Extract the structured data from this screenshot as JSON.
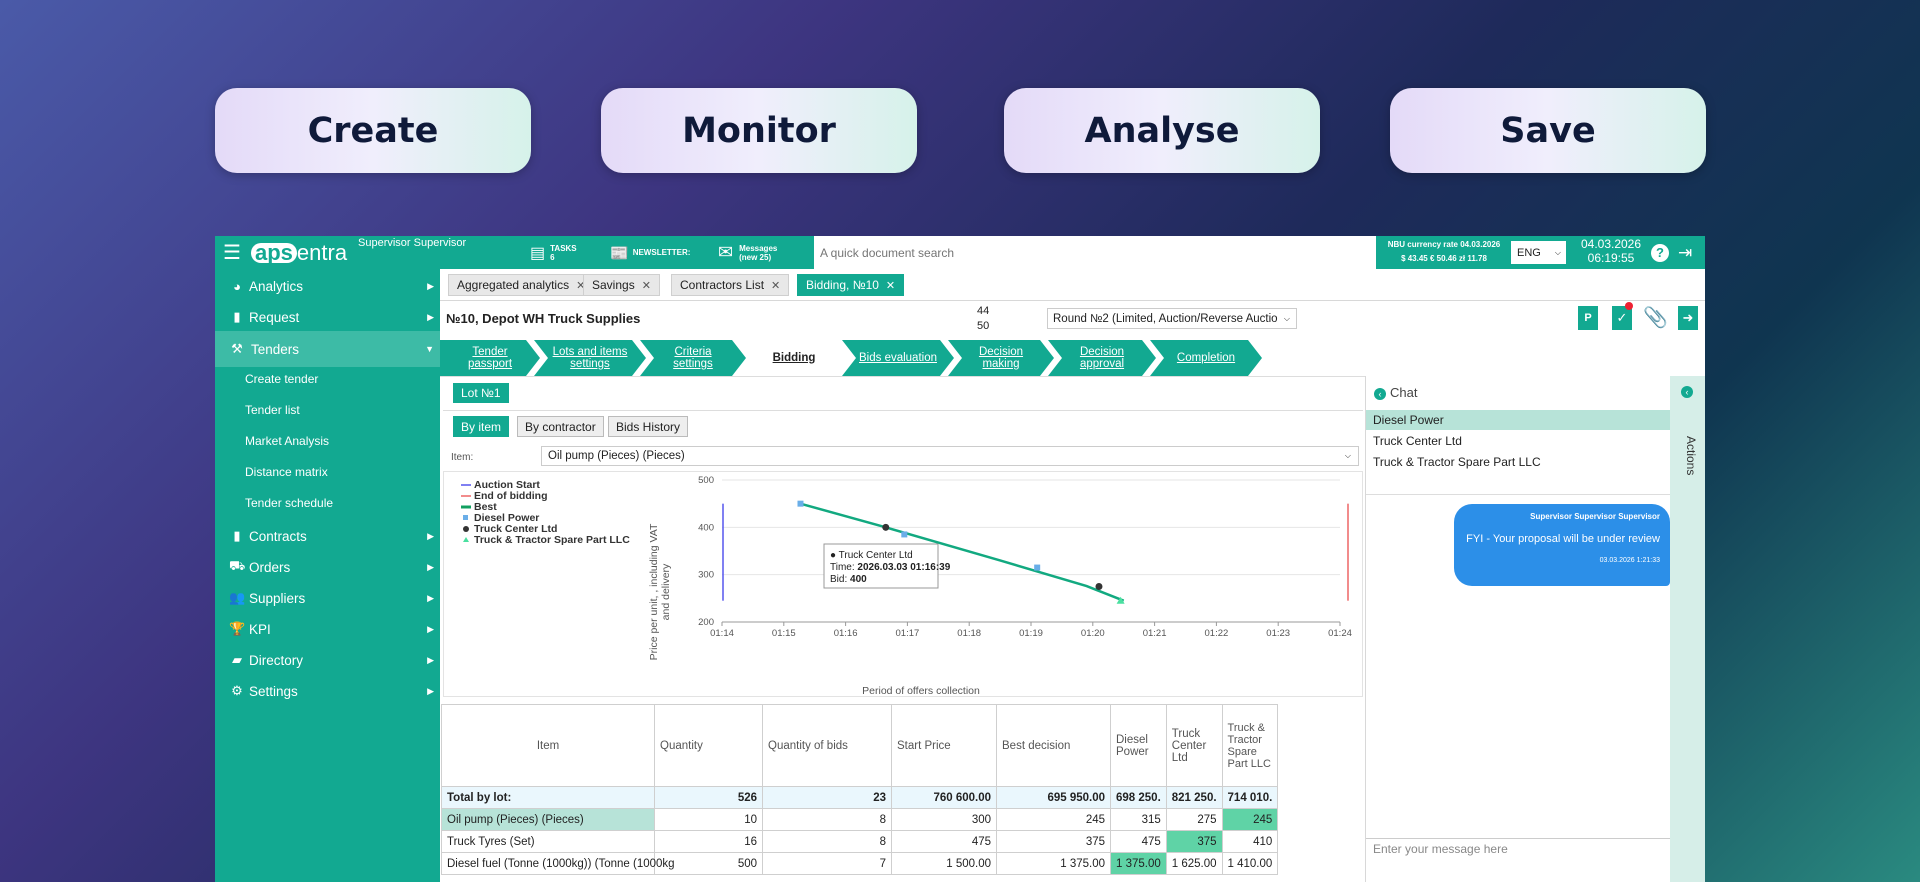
{
  "pills": [
    "Create",
    "Monitor",
    "Analyse",
    "Save"
  ],
  "topbar": {
    "brand_a": "aps",
    "brand_b": "entra",
    "user": "Supervisor Supervisor",
    "tasks_label": "TASKS",
    "tasks_count": "6",
    "newsletter": "NEWSLETTER:",
    "messages_label": "Messages",
    "messages_count": "(new 25)",
    "search_placeholder": "A quick document search",
    "rate_title": "NBU currency rate 04.03.2026",
    "rate_values": "$ 43.45  € 50.46  zł 11.78",
    "lang": "ENG",
    "date": "04.03.2026",
    "time": "06:19:55"
  },
  "sidebar": {
    "items": [
      {
        "label": "Analytics",
        "icon": "pie-chart-icon"
      },
      {
        "label": "Request",
        "icon": "document-icon"
      },
      {
        "label": "Tenders",
        "icon": "gavel-icon"
      },
      {
        "label": "Contracts",
        "icon": "contract-icon"
      },
      {
        "label": "Orders",
        "icon": "truck-icon"
      },
      {
        "label": "Suppliers",
        "icon": "users-icon"
      },
      {
        "label": "KPI",
        "icon": "trophy-icon"
      },
      {
        "label": "Directory",
        "icon": "book-icon"
      },
      {
        "label": "Settings",
        "icon": "gears-icon"
      }
    ],
    "sub": [
      "Create tender",
      "Tender list",
      "Market Analysis",
      "Distance matrix",
      "Tender schedule"
    ]
  },
  "tabs": [
    {
      "label": "Aggregated analytics"
    },
    {
      "label": "Savings"
    },
    {
      "label": "Contractors List"
    },
    {
      "label": "Bidding, №10"
    }
  ],
  "header": {
    "title": "№10, Depot WH Truck Supplies",
    "count_a": "44",
    "count_b": "50",
    "round": "Round №2 (Limited, Auction/Reverse Auctio"
  },
  "steps": [
    "Tender passport",
    "Lots and items settings",
    "Criteria settings",
    "Bidding",
    "Bids evaluation",
    "Decision making",
    "Decision approval",
    "Completion"
  ],
  "lot": "Lot №1",
  "views": [
    "By item",
    "By contractor",
    "Bids History"
  ],
  "item_label": "Item:",
  "item_value": "Oil pump (Pieces) (Pieces)",
  "chart_data": {
    "type": "line",
    "ylabel": "Price per unit, , including VAT and delivery",
    "xlabel": "Period of offers collection",
    "x_ticks": [
      "01:14",
      "01:15",
      "01:16",
      "01:17",
      "01:18",
      "01:19",
      "01:20",
      "01:21",
      "01:22",
      "01:23",
      "01:24"
    ],
    "y_ticks": [
      "200",
      "300",
      "400",
      "500"
    ],
    "ylim": [
      200,
      500
    ],
    "legend": [
      "Auction Start",
      "End of bidding",
      "Best",
      "Diesel Power",
      "Truck Center Ltd",
      "Truck & Tractor Spare Part LLC"
    ],
    "best": [
      {
        "x": 1.27,
        "y": 450
      },
      {
        "x": 2.65,
        "y": 400
      },
      {
        "x": 4.5,
        "y": 330
      },
      {
        "x": 5.9,
        "y": 276
      },
      {
        "x": 6.5,
        "y": 245
      }
    ],
    "diesel": [
      {
        "x": 1.27,
        "y": 450
      },
      {
        "x": 2.95,
        "y": 385
      },
      {
        "x": 5.1,
        "y": 315
      }
    ],
    "center": [
      {
        "x": 2.65,
        "y": 400
      },
      {
        "x": 6.1,
        "y": 275
      }
    ],
    "tractor": [
      {
        "x": 6.45,
        "y": 245
      }
    ],
    "auction_start_x": 0,
    "end_x": 10,
    "tooltip": {
      "title": "Truck Center Ltd",
      "time_label": "Time:",
      "time": "2026.03.03 01:16:39",
      "bid_label": "Bid:",
      "bid": "400"
    }
  },
  "table": {
    "headers": [
      "Item",
      "Quantity",
      "Quantity of bids",
      "Start Price",
      "Best decision",
      "Diesel Power",
      "Truck Center Ltd",
      "Truck & Tractor Spare Part LLC"
    ],
    "rows": [
      [
        "Total by lot:",
        "526",
        "23",
        "760 600.00",
        "695 950.00",
        "698 250.",
        "821 250.",
        "714 010."
      ],
      [
        "Oil pump (Pieces) (Pieces)",
        "10",
        "8",
        "300",
        "245",
        "315",
        "275",
        "245"
      ],
      [
        "Truck Tyres (Set)",
        "16",
        "8",
        "475",
        "375",
        "475",
        "375",
        "410"
      ],
      [
        "Diesel fuel (Tonne (1000kg)) (Tonne (1000kg",
        "500",
        "7",
        "1 500.00",
        "1 375.00",
        "1 375.00",
        "1 625.00",
        "1 410.00"
      ]
    ]
  },
  "chat": {
    "title": "Chat",
    "contacts": [
      "Diesel Power",
      "Truck Center Ltd",
      "Truck & Tractor Spare Part LLC"
    ],
    "msg_author": "Supervisor Supervisor Supervisor",
    "msg_text": "FYI - Your proposal will be under review",
    "msg_time": "03.03.2026 1:21:33",
    "placeholder": "Enter your message here",
    "actions": "Actions"
  }
}
